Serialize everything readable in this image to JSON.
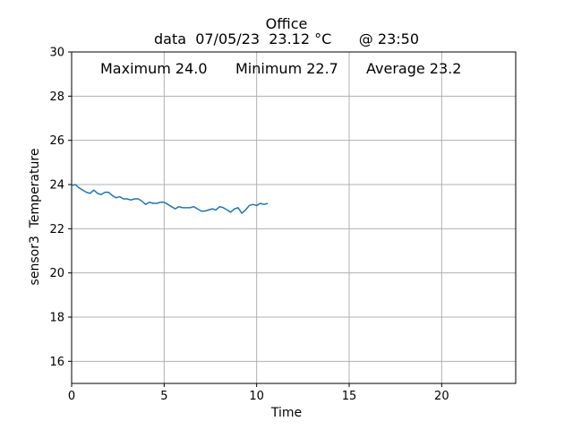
{
  "chart_data": {
    "type": "line",
    "title": "Office",
    "subtitle": "data  07/05/23  23.12 °C      @ 23:50",
    "xlabel": "Time",
    "ylabel": "sensor3  Temperature",
    "xlim": [
      0,
      24
    ],
    "ylim": [
      15,
      30
    ],
    "xticks": [
      0,
      5,
      10,
      15,
      20
    ],
    "yticks": [
      16,
      18,
      20,
      22,
      24,
      26,
      28,
      30
    ],
    "grid": true,
    "stats": {
      "maximum": "Maximum 24.0",
      "minimum": "Minimum 22.7",
      "average": "Average 23.2"
    },
    "series": [
      {
        "color": "#1f77b4",
        "x": [
          0.0,
          0.2,
          0.4,
          0.6,
          0.8,
          1.0,
          1.2,
          1.4,
          1.6,
          1.8,
          2.0,
          2.2,
          2.4,
          2.6,
          2.8,
          3.0,
          3.2,
          3.4,
          3.6,
          3.8,
          4.0,
          4.2,
          4.4,
          4.6,
          4.8,
          5.0,
          5.2,
          5.4,
          5.6,
          5.8,
          6.0,
          6.2,
          6.4,
          6.6,
          6.8,
          7.0,
          7.2,
          7.4,
          7.6,
          7.8,
          8.0,
          8.2,
          8.4,
          8.6,
          8.8,
          9.0,
          9.2,
          9.4,
          9.6,
          9.8,
          10.0,
          10.2,
          10.4,
          10.6
        ],
        "y": [
          23.95,
          24.0,
          23.85,
          23.75,
          23.65,
          23.6,
          23.75,
          23.6,
          23.55,
          23.65,
          23.65,
          23.5,
          23.4,
          23.45,
          23.35,
          23.35,
          23.3,
          23.35,
          23.35,
          23.25,
          23.1,
          23.2,
          23.15,
          23.15,
          23.2,
          23.2,
          23.1,
          23.0,
          22.9,
          23.0,
          22.95,
          22.95,
          22.95,
          23.0,
          22.9,
          22.8,
          22.8,
          22.85,
          22.9,
          22.85,
          23.0,
          22.95,
          22.85,
          22.75,
          22.9,
          22.95,
          22.7,
          22.85,
          23.05,
          23.1,
          23.05,
          23.15,
          23.1,
          23.15
        ]
      }
    ]
  }
}
